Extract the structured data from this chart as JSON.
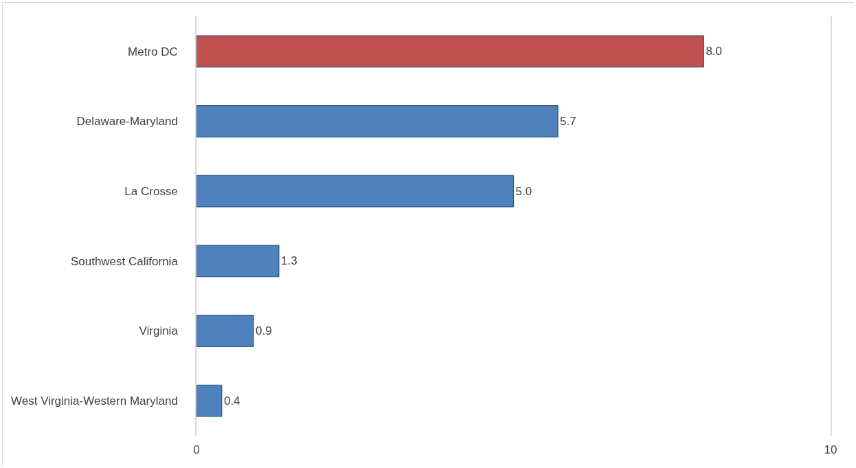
{
  "chart_data": {
    "type": "bar",
    "orientation": "horizontal",
    "categories": [
      "Metro DC",
      "Delaware-Maryland",
      "La Crosse",
      "Southwest California",
      "Virginia",
      "West Virginia-Western Maryland"
    ],
    "values": [
      8.0,
      5.7,
      5.0,
      1.3,
      0.9,
      0.4
    ],
    "value_labels": [
      "8.0",
      "5.7",
      "5.0",
      "1.3",
      "0.9",
      "0.4"
    ],
    "colors": [
      "#c0504d",
      "#4f81bd",
      "#4f81bd",
      "#4f81bd",
      "#4f81bd",
      "#4f81bd"
    ],
    "xlim": [
      0,
      10
    ],
    "xticks": [
      0,
      10
    ]
  }
}
